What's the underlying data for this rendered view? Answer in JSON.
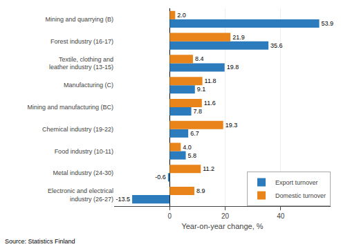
{
  "chart_data": {
    "type": "bar",
    "orientation": "horizontal",
    "categories": [
      "Mining and quarrying (B)",
      "Forest industry (16-17)",
      "Textile, clothing and\nleather industry (13-15)",
      "Manufacturing (C)",
      "Mining and manufacturing (BC)",
      "Chemical industry (19-22)",
      "Food industry (10-11)",
      "Metal industry (24-30)",
      "Electronic and electrical\nindustry (26-27)"
    ],
    "series": [
      {
        "name": "Export turnover",
        "color": "#2B7BBD",
        "values": [
          53.9,
          35.6,
          19.8,
          9.1,
          7.8,
          6.7,
          5.8,
          -0.6,
          -13.5
        ],
        "value_labels": [
          "53.9",
          "35.6",
          "19.8",
          "9.1",
          "7.8",
          "6.7",
          "5.8",
          "-0.6",
          "-13.5"
        ]
      },
      {
        "name": "Domestic turnover",
        "color": "#E8841A",
        "values": [
          2.0,
          21.9,
          8.4,
          11.8,
          11.6,
          19.3,
          4.0,
          11.2,
          8.9
        ],
        "value_labels": [
          "2.0",
          "21.9",
          "8.4",
          "11.8",
          "11.6",
          "19.3",
          "4.0",
          "11.2",
          "8.9"
        ]
      }
    ],
    "x_label": "Year-on-year change, %",
    "source": "Source: Statistics Finland",
    "xlim": [
      -20,
      58
    ],
    "xticks": [
      0,
      20,
      40
    ],
    "grid": true,
    "legend": "lower right",
    "data_labels": true
  }
}
